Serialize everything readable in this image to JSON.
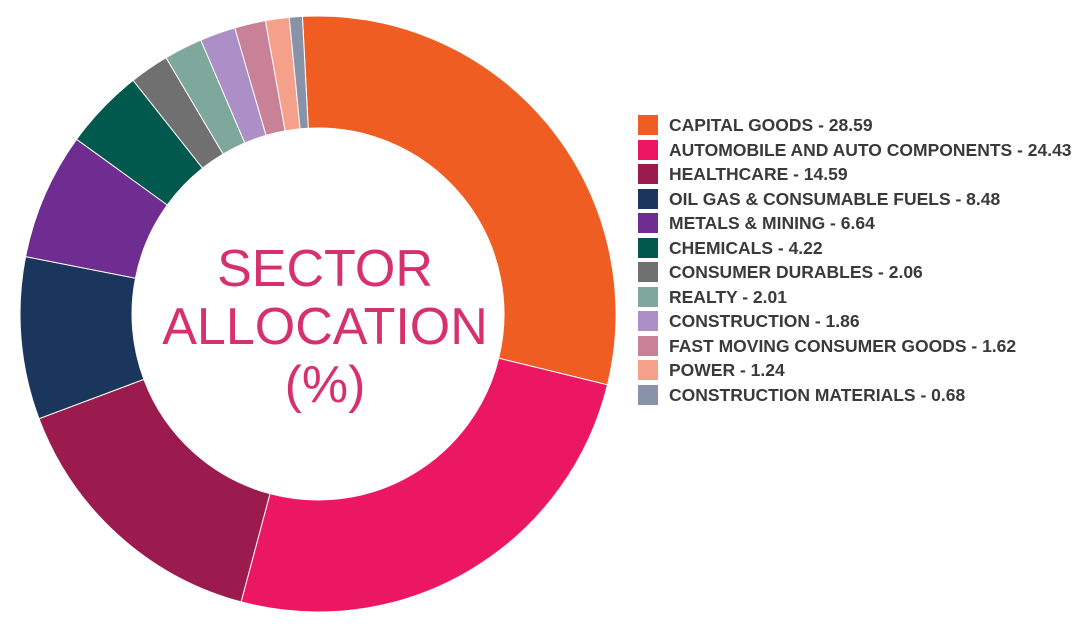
{
  "chart_data": {
    "type": "pie",
    "title": [
      "SECTOR",
      "ALLOCATION",
      "(%)"
    ],
    "legend_position": "right",
    "start_angle_deg": -3,
    "categories": [
      "CAPITAL GOODS",
      "AUTOMOBILE AND AUTO COMPONENTS",
      "HEALTHCARE",
      "OIL GAS & CONSUMABLE FUELS",
      "METALS & MINING",
      "CHEMICALS",
      "CONSUMER DURABLES",
      "REALTY",
      "CONSTRUCTION",
      "FAST MOVING CONSUMER GOODS",
      "POWER",
      "CONSTRUCTION MATERIALS"
    ],
    "values": [
      28.59,
      24.43,
      14.59,
      8.48,
      6.64,
      4.22,
      2.06,
      2.01,
      1.86,
      1.62,
      1.24,
      0.68
    ],
    "colors": [
      "#f05d23",
      "#ec1763",
      "#9b1b4f",
      "#1b365d",
      "#6f2c91",
      "#00594c",
      "#707070",
      "#7fa89c",
      "#ac8fc7",
      "#c88197",
      "#f4a08b",
      "#8893aa"
    ],
    "legend_labels": [
      "CAPITAL GOODS - 28.59",
      "AUTOMOBILE AND AUTO COMPONENTS - 24.43",
      "HEALTHCARE - 14.59",
      "OIL GAS & CONSUMABLE FUELS - 8.48",
      "METALS & MINING - 6.64",
      "CHEMICALS - 4.22",
      "CONSUMER DURABLES - 2.06",
      "REALTY - 2.01",
      "CONSTRUCTION - 1.86",
      "FAST MOVING CONSUMER GOODS - 1.62",
      "POWER - 1.24",
      "CONSTRUCTION MATERIALS - 0.68"
    ]
  }
}
